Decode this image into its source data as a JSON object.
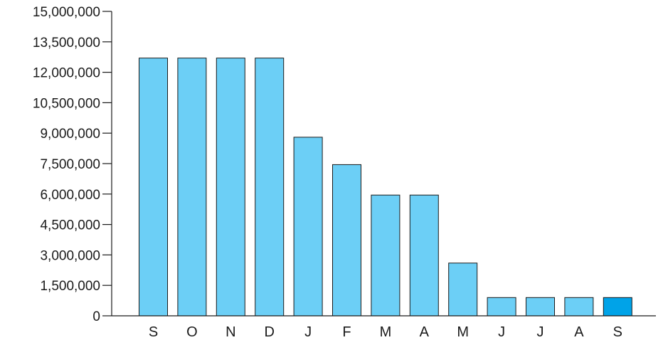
{
  "chart_data": {
    "type": "bar",
    "categories": [
      "S",
      "O",
      "N",
      "D",
      "J",
      "F",
      "M",
      "A",
      "M",
      "J",
      "J",
      "A",
      "S"
    ],
    "values": [
      12700000,
      12700000,
      12700000,
      12700000,
      8800000,
      7450000,
      5950000,
      5950000,
      2600000,
      900000,
      900000,
      900000,
      900000
    ],
    "ylim": [
      0,
      15000000
    ],
    "yticks": [
      "0",
      "1,500,000",
      "3,000,000",
      "4,500,000",
      "6,000,000",
      "7,500,000",
      "9,000,000",
      "10,500,000",
      "12,000,000",
      "13,500,000",
      "15,000,000"
    ],
    "ytick_values": [
      0,
      1500000,
      3000000,
      4500000,
      6000000,
      7500000,
      9000000,
      10500000,
      12000000,
      13500000,
      15000000
    ],
    "colors": {
      "bar": "#6ccff6",
      "highlight_bar": "#00a3e8",
      "outline": "#1a1a1a"
    },
    "highlight_index": 12,
    "grid": false,
    "legend": "none"
  }
}
